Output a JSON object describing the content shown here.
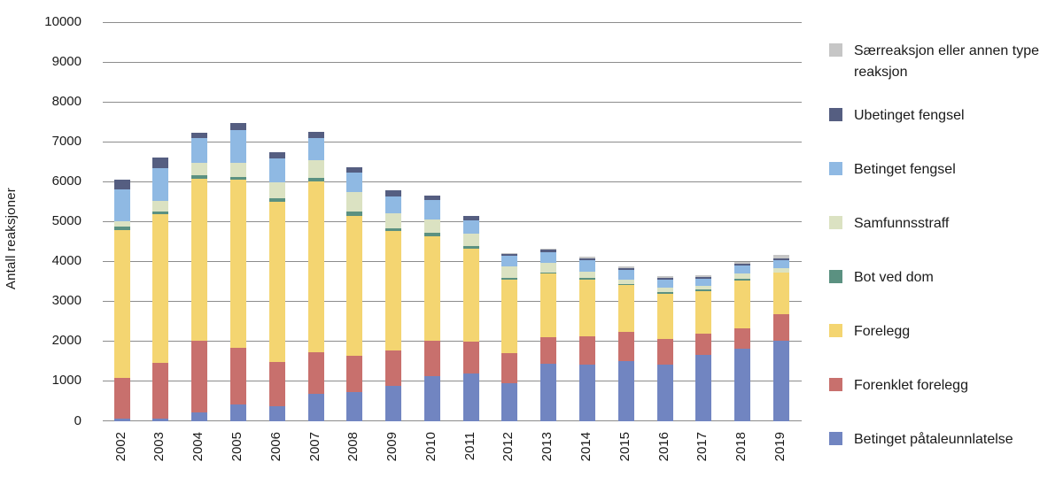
{
  "chart_data": {
    "type": "bar",
    "subtype": "stacked-vertical",
    "title": "",
    "ylabel": "Antall reaksjoner",
    "xlabel": "",
    "ylim": [
      0,
      10000
    ],
    "ytick_step": 1000,
    "yticks": [
      "0",
      "1000",
      "2000",
      "3000",
      "4000",
      "5000",
      "6000",
      "7000",
      "8000",
      "9000",
      "10000"
    ],
    "grid": "horizontal",
    "legend_position": "right",
    "categories": [
      "2002",
      "2003",
      "2004",
      "2005",
      "2006",
      "2007",
      "2008",
      "2009",
      "2010",
      "2011",
      "2012",
      "2013",
      "2014",
      "2015",
      "2016",
      "2017",
      "2018",
      "2019"
    ],
    "series": [
      {
        "key": "betinget_pataleunnlatelse",
        "name": "Betinget påtaleunnlatelse",
        "color": "#7185c1",
        "values": [
          60,
          60,
          210,
          420,
          375,
          680,
          715,
          880,
          1115,
          1185,
          945,
          1425,
          1405,
          1500,
          1400,
          1655,
          1815,
          2010
        ]
      },
      {
        "key": "forenklet_forelegg",
        "name": "Forenklet forelegg",
        "color": "#c8706d",
        "values": [
          1020,
          1400,
          1810,
          1420,
          1105,
          1030,
          910,
          885,
          885,
          805,
          750,
          670,
          705,
          725,
          645,
          535,
          515,
          660
        ]
      },
      {
        "key": "forelegg",
        "name": "Forelegg",
        "color": "#f4d571",
        "values": [
          3700,
          3720,
          4050,
          4200,
          4020,
          4290,
          3525,
          2990,
          2625,
          2335,
          1855,
          1595,
          1435,
          1175,
          1150,
          1060,
          1195,
          1040
        ]
      },
      {
        "key": "bot_ved_dom",
        "name": "Bot ved dom",
        "color": "#5b9181",
        "values": [
          90,
          80,
          80,
          70,
          80,
          100,
          105,
          75,
          90,
          65,
          30,
          30,
          45,
          30,
          45,
          40,
          35,
          20
        ]
      },
      {
        "key": "samfunnsstraff",
        "name": "Samfunnsstraff",
        "color": "#dbe2c2",
        "values": [
          130,
          250,
          330,
          370,
          410,
          440,
          475,
          375,
          340,
          310,
          300,
          235,
          160,
          115,
          110,
          85,
          130,
          110
        ]
      },
      {
        "key": "betinget_fengsel",
        "name": "Betinget fengsel",
        "color": "#8fb9e3",
        "values": [
          800,
          840,
          620,
          820,
          590,
          550,
          495,
          430,
          475,
          330,
          260,
          275,
          280,
          240,
          195,
          185,
          205,
          195
        ]
      },
      {
        "key": "ubetinget_fengsel",
        "name": "Ubetinget fengsel",
        "color": "#555e81",
        "values": [
          250,
          250,
          130,
          160,
          160,
          150,
          145,
          155,
          125,
          100,
          50,
          60,
          45,
          45,
          40,
          50,
          55,
          40
        ]
      },
      {
        "key": "saerreaksjon",
        "name": "Særreaksjon eller annen type reaksjon",
        "color": "#c6c6c6",
        "values": [
          0,
          0,
          0,
          0,
          0,
          0,
          0,
          0,
          0,
          0,
          25,
          35,
          45,
          45,
          40,
          45,
          35,
          80
        ]
      }
    ],
    "legend": [
      {
        "key": "saerreaksjon",
        "label": "Særreaksjon eller annen type reaksjon",
        "color": "#c6c6c6"
      },
      {
        "key": "ubetinget_fengsel",
        "label": "Ubetinget fengsel",
        "color": "#555e81"
      },
      {
        "key": "betinget_fengsel",
        "label": "Betinget fengsel",
        "color": "#8fb9e3"
      },
      {
        "key": "samfunnsstraff",
        "label": "Samfunnsstraff",
        "color": "#dbe2c2"
      },
      {
        "key": "bot_ved_dom",
        "label": "Bot ved dom",
        "color": "#5b9181"
      },
      {
        "key": "forelegg",
        "label": "Forelegg",
        "color": "#f4d571"
      },
      {
        "key": "forenklet_forelegg",
        "label": "Forenklet forelegg",
        "color": "#c8706d"
      },
      {
        "key": "betinget_pataleunnlatelse",
        "label": "Betinget påtaleunnlatelse",
        "color": "#7185c1"
      }
    ],
    "colors": {
      "gridline": "#8c8c8c",
      "text": "#1a1a1a",
      "background": "#ffffff"
    }
  }
}
